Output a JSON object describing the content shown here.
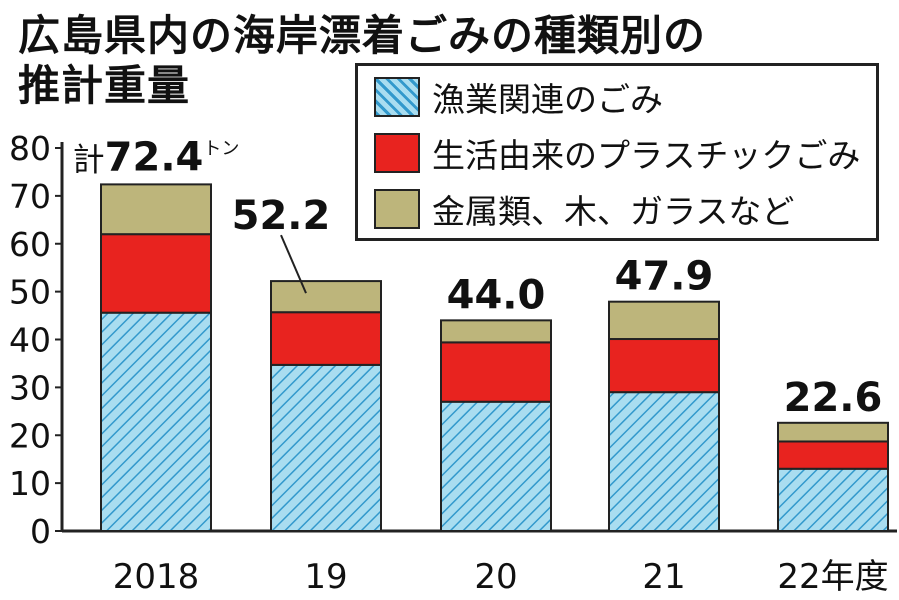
{
  "title": {
    "line1": "広島県内の海岸漂着ごみの種類別の",
    "line2": "推計重量"
  },
  "unit_label": "トン",
  "total_prefix": "計",
  "colors": {
    "fishery": "#a9ddf0",
    "fishery_hatch": "#3399cc",
    "plastic": "#e8231f",
    "metal": "#bdb57b",
    "border": "#222222"
  },
  "chart_data": {
    "type": "bar",
    "stacked": true,
    "categories": [
      "2018",
      "19",
      "20",
      "21",
      "22年度"
    ],
    "series": [
      {
        "name": "漁業関連のごみ",
        "values": [
          45.6,
          34.7,
          27.0,
          29.0,
          13.0
        ]
      },
      {
        "name": "生活由来のプラスチックごみ",
        "values": [
          16.4,
          11.0,
          12.4,
          11.1,
          5.7
        ]
      },
      {
        "name": "金属類、木、ガラスなど",
        "values": [
          10.4,
          6.5,
          4.6,
          7.8,
          3.9
        ]
      }
    ],
    "totals": [
      "72.4",
      "52.2",
      "44.0",
      "47.9",
      "22.6"
    ],
    "yticks": [
      0,
      10,
      20,
      30,
      40,
      50,
      60,
      70,
      80
    ],
    "ylim": [
      0,
      80
    ],
    "grid": false,
    "legend_position": "top-right"
  }
}
